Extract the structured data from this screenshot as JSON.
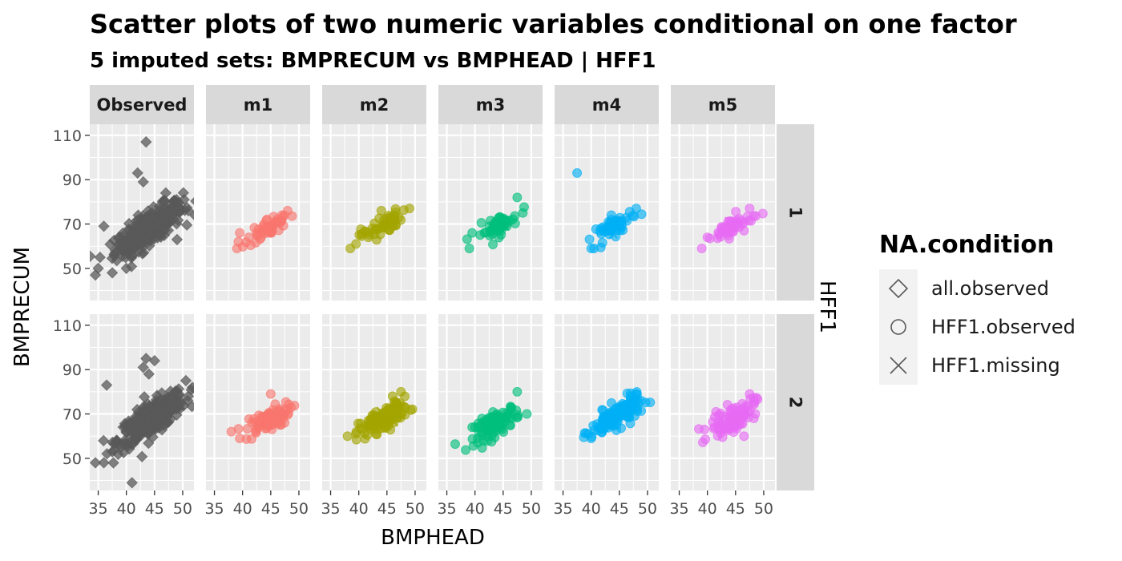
{
  "chart_data": {
    "type": "scatter",
    "title": "Scatter plots of two numeric variables conditional on one factor",
    "subtitle": "5  imputed sets:  BMPRECUM vs BMPHEAD | HFF1",
    "xlabel": "BMPHEAD",
    "ylabel": "BMPRECUM",
    "facet_row_label": "HFF1",
    "columns": [
      "Observed",
      "m1",
      "m2",
      "m3",
      "m4",
      "m5"
    ],
    "rows": [
      "1",
      "2"
    ],
    "xlim": [
      33.5,
      52
    ],
    "ylim": [
      35.5,
      115
    ],
    "x_ticks": [
      35,
      40,
      45,
      50
    ],
    "y_ticks": [
      50,
      70,
      90,
      110
    ],
    "grid": true,
    "legend": {
      "title": "NA.condition",
      "placement": "right",
      "entries": [
        {
          "label": "all.observed",
          "shape": "diamond"
        },
        {
          "label": "HFF1.observed",
          "shape": "circle"
        },
        {
          "label": "HFF1.missing",
          "shape": "cross"
        }
      ]
    },
    "colors": {
      "Observed": "#595959",
      "m1": "#F8766D",
      "m2": "#A3A500",
      "m3": "#00BF7D",
      "m4": "#00B0F6",
      "m5": "#E76BF3"
    },
    "clouds": {
      "Observed": {
        "1": {
          "center": [
            44,
            68
          ],
          "n": 320,
          "sd_x": 3.0,
          "sd_y": 6.0,
          "corr": 0.8,
          "points": [
            [
              43.5,
              107
            ],
            [
              42,
              93
            ],
            [
              43,
              89
            ],
            [
              36,
              69
            ],
            [
              35,
              50
            ],
            [
              34.5,
              47
            ],
            [
              37.5,
              48
            ],
            [
              40,
              50
            ],
            [
              49,
              63
            ],
            [
              51,
              76
            ],
            [
              47,
              84
            ]
          ]
        },
        "2": {
          "center": [
            44.5,
            68
          ],
          "n": 340,
          "sd_x": 3.0,
          "sd_y": 6.0,
          "corr": 0.8,
          "points": [
            [
              43.5,
              95
            ],
            [
              45,
              94
            ],
            [
              43,
              91
            ],
            [
              44,
              88
            ],
            [
              36.5,
              83
            ],
            [
              34.5,
              48
            ],
            [
              36,
              48
            ],
            [
              41,
              39
            ],
            [
              37.5,
              53
            ],
            [
              39,
              55
            ],
            [
              51,
              78
            ]
          ]
        }
      },
      "m1": {
        "1": {
          "center": [
            44.5,
            68
          ],
          "n": 50,
          "sd_x": 1.8,
          "sd_y": 3.2,
          "corr": 0.7,
          "points": [
            [
              39,
              59
            ],
            [
              39.5,
              66
            ],
            [
              48,
              76
            ],
            [
              47,
              74
            ]
          ]
        },
        "2": {
          "center": [
            44.5,
            67
          ],
          "n": 80,
          "sd_x": 2.0,
          "sd_y": 3.5,
          "corr": 0.7,
          "points": [
            [
              38,
              62
            ],
            [
              39.5,
              59
            ],
            [
              48,
              72
            ],
            [
              45,
              79
            ]
          ]
        }
      },
      "m2": {
        "1": {
          "center": [
            44,
            69
          ],
          "n": 50,
          "sd_x": 1.8,
          "sd_y": 3.2,
          "corr": 0.7,
          "points": [
            [
              38.5,
              59
            ],
            [
              39.5,
              61
            ],
            [
              49,
              77
            ],
            [
              44,
              76
            ]
          ]
        },
        "2": {
          "center": [
            44.5,
            68
          ],
          "n": 120,
          "sd_x": 2.2,
          "sd_y": 3.8,
          "corr": 0.75,
          "points": [
            [
              38,
              60
            ],
            [
              47.5,
              80
            ],
            [
              46,
              78
            ],
            [
              39.5,
              61
            ]
          ]
        }
      },
      "m3": {
        "1": {
          "center": [
            44,
            69
          ],
          "n": 50,
          "sd_x": 1.8,
          "sd_y": 3.2,
          "corr": 0.7,
          "points": [
            [
              39,
              59
            ],
            [
              39.5,
              66
            ],
            [
              47.5,
              82
            ],
            [
              48.5,
              75
            ]
          ]
        },
        "2": {
          "center": [
            44,
            66
          ],
          "n": 90,
          "sd_x": 2.0,
          "sd_y": 3.8,
          "corr": 0.7,
          "points": [
            [
              40.5,
              57
            ],
            [
              40.5,
              59
            ],
            [
              47.5,
              80
            ],
            [
              39.5,
              64
            ]
          ]
        }
      },
      "m4": {
        "1": {
          "center": [
            44,
            69
          ],
          "n": 50,
          "sd_x": 1.8,
          "sd_y": 3.2,
          "corr": 0.7,
          "points": [
            [
              37.5,
              93
            ],
            [
              40,
              59
            ],
            [
              40.5,
              59
            ],
            [
              48,
              77
            ]
          ]
        },
        "2": {
          "center": [
            44.5,
            69
          ],
          "n": 140,
          "sd_x": 2.2,
          "sd_y": 4.0,
          "corr": 0.75,
          "points": [
            [
              40,
              59
            ],
            [
              39.5,
              61
            ],
            [
              48,
              79
            ],
            [
              47,
              78
            ]
          ]
        }
      },
      "m5": {
        "1": {
          "center": [
            44.5,
            69
          ],
          "n": 50,
          "sd_x": 1.8,
          "sd_y": 3.2,
          "corr": 0.7,
          "points": [
            [
              39,
              59
            ],
            [
              40,
              64
            ],
            [
              47.5,
              77
            ],
            [
              46.5,
              67
            ]
          ]
        },
        "2": {
          "center": [
            44.5,
            68
          ],
          "n": 90,
          "sd_x": 2.0,
          "sd_y": 4.0,
          "corr": 0.7,
          "points": [
            [
              39.5,
              63
            ],
            [
              46.5,
              60
            ],
            [
              48.5,
              70
            ],
            [
              47.5,
              79
            ]
          ]
        }
      }
    }
  }
}
